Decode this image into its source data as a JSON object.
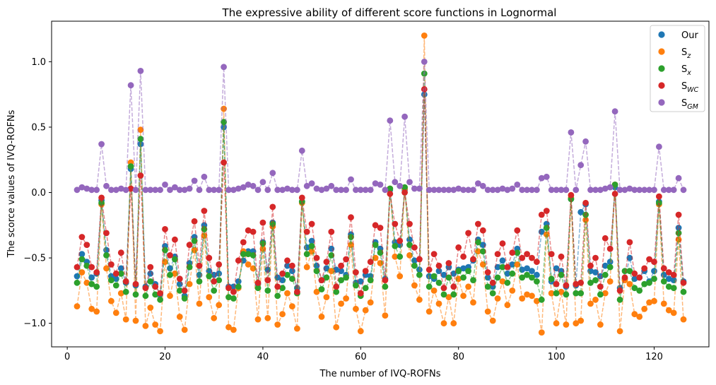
{
  "chart_data": {
    "type": "scatter",
    "title": "The expressive ability of different score functions in Lognormal",
    "xlabel": "The number of IVQ-ROFNs",
    "ylabel": "The scorce values  of IVQ-ROFNs",
    "xlim": [
      -3.2,
      131.2
    ],
    "ylim": [
      -1.18,
      1.31
    ],
    "xticks": [
      0,
      20,
      40,
      60,
      80,
      100,
      120
    ],
    "xtick_labels": [
      "0",
      "20",
      "40",
      "60",
      "80",
      "100",
      "120"
    ],
    "yticks": [
      -1.0,
      -0.5,
      0.0,
      0.5,
      1.0
    ],
    "ytick_labels": [
      "−1.0",
      "−0.5",
      "0.0",
      "0.5",
      "1.0"
    ],
    "grid": false,
    "legend_position": "top-right",
    "x": [
      2,
      3,
      4,
      5,
      6,
      7,
      8,
      9,
      10,
      11,
      12,
      13,
      14,
      15,
      16,
      17,
      18,
      19,
      20,
      21,
      22,
      23,
      24,
      25,
      26,
      27,
      28,
      29,
      30,
      31,
      32,
      33,
      34,
      35,
      36,
      37,
      38,
      39,
      40,
      41,
      42,
      43,
      44,
      45,
      46,
      47,
      48,
      49,
      50,
      51,
      52,
      53,
      54,
      55,
      56,
      57,
      58,
      59,
      60,
      61,
      62,
      63,
      64,
      65,
      66,
      67,
      68,
      69,
      70,
      71,
      72,
      73,
      74,
      75,
      76,
      77,
      78,
      79,
      80,
      81,
      82,
      83,
      84,
      85,
      86,
      87,
      88,
      89,
      90,
      91,
      92,
      93,
      94,
      95,
      96,
      97,
      98,
      99,
      100,
      101,
      102,
      103,
      104,
      105,
      106,
      107,
      108,
      109,
      110,
      111,
      112,
      113,
      114,
      115,
      116,
      117,
      118,
      119,
      120,
      121,
      122,
      123,
      124,
      125,
      126
    ],
    "series": [
      {
        "name": "Our",
        "label_main": "Our",
        "label_sub": "",
        "color": "#1f77b4",
        "values": [
          -0.64,
          -0.47,
          -0.53,
          -0.65,
          -0.62,
          -0.06,
          -0.44,
          -0.64,
          -0.66,
          -0.58,
          -0.69,
          0.18,
          -0.71,
          0.37,
          -0.72,
          -0.62,
          -0.7,
          -0.78,
          -0.41,
          -0.58,
          -0.49,
          -0.7,
          -0.79,
          -0.54,
          -0.34,
          -0.63,
          -0.25,
          -0.6,
          -0.63,
          -0.62,
          0.5,
          -0.72,
          -0.72,
          -0.68,
          -0.52,
          -0.45,
          -0.45,
          -0.7,
          -0.38,
          -0.59,
          -0.23,
          -0.65,
          -0.67,
          -0.56,
          -0.6,
          -0.73,
          -0.07,
          -0.42,
          -0.37,
          -0.56,
          -0.67,
          -0.58,
          -0.43,
          -0.59,
          -0.6,
          -0.63,
          -0.32,
          -0.69,
          -0.68,
          -0.63,
          -0.64,
          -0.38,
          -0.43,
          -0.66,
          0.02,
          -0.38,
          -0.4,
          0.02,
          -0.36,
          -0.52,
          -0.59,
          0.75,
          -0.64,
          -0.66,
          -0.6,
          -0.63,
          -0.57,
          -0.62,
          -0.59,
          -0.58,
          -0.57,
          -0.52,
          -0.36,
          -0.4,
          -0.65,
          -0.72,
          -0.57,
          -0.52,
          -0.62,
          -0.55,
          -0.43,
          -0.59,
          -0.58,
          -0.6,
          -0.63,
          -0.3,
          -0.24,
          -0.68,
          -0.58,
          -0.6,
          -0.72,
          -0.05,
          -0.71,
          -0.15,
          -0.09,
          -0.6,
          -0.61,
          -0.64,
          -0.56,
          -0.53,
          0.04,
          -0.73,
          -0.66,
          -0.5,
          -0.66,
          -0.65,
          -0.6,
          -0.68,
          -0.6,
          -0.07,
          -0.63,
          -0.66,
          -0.67,
          -0.27,
          -0.68
        ]
      },
      {
        "name": "S_z",
        "label_main": "S",
        "label_sub": "z",
        "color": "#ff7f0e",
        "values": [
          -0.87,
          -0.61,
          -0.69,
          -0.89,
          -0.91,
          -0.09,
          -0.58,
          -0.83,
          -0.92,
          -0.77,
          -0.97,
          0.23,
          -0.98,
          0.48,
          -1.02,
          -0.88,
          -1.01,
          -1.06,
          -0.53,
          -0.79,
          -0.62,
          -0.95,
          -1.05,
          -0.7,
          -0.44,
          -0.85,
          -0.33,
          -0.8,
          -0.96,
          -0.86,
          0.64,
          -1.03,
          -1.05,
          -0.73,
          -0.45,
          -0.55,
          -0.58,
          -0.97,
          -0.43,
          -0.96,
          -0.26,
          -1.01,
          -0.93,
          -0.77,
          -0.87,
          -1.04,
          -0.08,
          -0.57,
          -0.45,
          -0.76,
          -0.95,
          -0.8,
          -0.6,
          -1.03,
          -0.85,
          -0.81,
          -0.4,
          -0.89,
          -1.06,
          -0.9,
          -0.84,
          -0.5,
          -0.54,
          -0.94,
          0.03,
          -0.49,
          -0.64,
          0.03,
          -0.48,
          -0.71,
          -0.82,
          1.2,
          -0.91,
          -0.75,
          -0.85,
          -1.0,
          -0.8,
          -1.0,
          -0.66,
          -0.79,
          -0.72,
          -0.84,
          -0.45,
          -0.55,
          -0.91,
          -0.98,
          -0.81,
          -0.68,
          -0.86,
          -0.75,
          -0.55,
          -0.81,
          -0.78,
          -0.79,
          -0.83,
          -1.07,
          -0.32,
          -0.77,
          -1.0,
          -0.76,
          -1.01,
          -0.04,
          -1.0,
          -0.98,
          -0.21,
          -0.85,
          -0.82,
          -1.01,
          -0.77,
          -0.68,
          0.06,
          -1.06,
          -0.67,
          -0.7,
          -0.93,
          -0.95,
          -0.89,
          -0.84,
          -0.83,
          -0.09,
          -0.85,
          -0.9,
          -0.92,
          -0.36,
          -0.97
        ]
      },
      {
        "name": "S_x",
        "label_main": "S",
        "label_sub": "x",
        "color": "#2ca02c",
        "values": [
          -0.69,
          -0.51,
          -0.56,
          -0.7,
          -0.72,
          -0.08,
          -0.48,
          -0.67,
          -0.71,
          -0.62,
          -0.76,
          0.2,
          -0.78,
          0.41,
          -0.79,
          -0.68,
          -0.78,
          -0.82,
          -0.44,
          -0.63,
          -0.51,
          -0.75,
          -0.81,
          -0.57,
          -0.37,
          -0.68,
          -0.28,
          -0.64,
          -0.75,
          -0.67,
          0.54,
          -0.8,
          -0.81,
          -0.72,
          -0.47,
          -0.47,
          -0.48,
          -0.73,
          -0.39,
          -0.75,
          -0.24,
          -0.79,
          -0.73,
          -0.63,
          -0.66,
          -0.77,
          -0.07,
          -0.47,
          -0.41,
          -0.6,
          -0.74,
          -0.65,
          -0.48,
          -0.76,
          -0.67,
          -0.65,
          -0.34,
          -0.71,
          -0.79,
          -0.73,
          -0.67,
          -0.4,
          -0.46,
          -0.72,
          0.03,
          -0.41,
          -0.49,
          0.04,
          -0.4,
          -0.56,
          -0.63,
          0.91,
          -0.72,
          -0.64,
          -0.69,
          -0.78,
          -0.65,
          -0.78,
          -0.6,
          -0.65,
          -0.6,
          -0.67,
          -0.38,
          -0.45,
          -0.72,
          -0.77,
          -0.65,
          -0.57,
          -0.69,
          -0.62,
          -0.46,
          -0.65,
          -0.63,
          -0.65,
          -0.68,
          -0.82,
          -0.27,
          -0.66,
          -0.77,
          -0.63,
          -0.78,
          -0.05,
          -0.77,
          -0.77,
          -0.17,
          -0.69,
          -0.67,
          -0.78,
          -0.63,
          -0.57,
          0.06,
          -0.82,
          -0.6,
          -0.6,
          -0.73,
          -0.75,
          -0.7,
          -0.69,
          -0.66,
          -0.08,
          -0.68,
          -0.72,
          -0.73,
          -0.31,
          -0.76
        ]
      },
      {
        "name": "S_WC",
        "label_main": "S",
        "label_sub": "WC",
        "color": "#d62728",
        "values": [
          -0.57,
          -0.34,
          -0.4,
          -0.57,
          -0.61,
          -0.04,
          -0.31,
          -0.55,
          -0.62,
          -0.46,
          -0.68,
          0.03,
          -0.7,
          0.13,
          -0.73,
          -0.57,
          -0.72,
          -0.77,
          -0.28,
          -0.48,
          -0.36,
          -0.66,
          -0.75,
          -0.4,
          -0.22,
          -0.56,
          -0.14,
          -0.5,
          -0.68,
          -0.55,
          0.23,
          -0.73,
          -0.76,
          -0.52,
          -0.38,
          -0.29,
          -0.3,
          -0.69,
          -0.23,
          -0.67,
          -0.11,
          -0.72,
          -0.62,
          -0.52,
          -0.56,
          -0.76,
          -0.04,
          -0.3,
          -0.24,
          -0.5,
          -0.67,
          -0.53,
          -0.3,
          -0.72,
          -0.56,
          -0.51,
          -0.19,
          -0.61,
          -0.77,
          -0.6,
          -0.53,
          -0.25,
          -0.27,
          -0.67,
          -0.01,
          -0.24,
          -0.37,
          0.0,
          -0.24,
          -0.42,
          -0.51,
          0.79,
          -0.59,
          -0.47,
          -0.56,
          -0.73,
          -0.54,
          -0.72,
          -0.42,
          -0.49,
          -0.31,
          -0.51,
          -0.24,
          -0.29,
          -0.61,
          -0.69,
          -0.47,
          -0.39,
          -0.57,
          -0.46,
          -0.29,
          -0.5,
          -0.47,
          -0.5,
          -0.53,
          -0.17,
          -0.14,
          -0.47,
          -0.7,
          -0.49,
          -0.71,
          -0.02,
          -0.7,
          -0.69,
          -0.08,
          -0.56,
          -0.5,
          -0.72,
          -0.35,
          -0.43,
          -0.01,
          -0.75,
          -0.65,
          -0.38,
          -0.62,
          -0.65,
          -0.58,
          -0.51,
          -0.53,
          -0.03,
          -0.58,
          -0.61,
          -0.63,
          -0.17,
          -0.69
        ]
      },
      {
        "name": "S_GM",
        "label_main": "S",
        "label_sub": "GM",
        "color": "#9467bd",
        "values": [
          0.02,
          0.04,
          0.03,
          0.02,
          0.02,
          0.37,
          0.05,
          0.02,
          0.02,
          0.03,
          0.02,
          0.82,
          0.02,
          0.93,
          0.02,
          0.02,
          0.02,
          0.02,
          0.06,
          0.02,
          0.04,
          0.02,
          0.02,
          0.03,
          0.09,
          0.02,
          0.12,
          0.02,
          0.02,
          0.02,
          0.96,
          0.02,
          0.02,
          0.03,
          0.04,
          0.06,
          0.05,
          0.02,
          0.08,
          0.02,
          0.15,
          0.02,
          0.02,
          0.03,
          0.02,
          0.02,
          0.32,
          0.05,
          0.07,
          0.03,
          0.02,
          0.03,
          0.05,
          0.02,
          0.02,
          0.02,
          0.1,
          0.02,
          0.02,
          0.02,
          0.02,
          0.07,
          0.06,
          0.02,
          0.55,
          0.08,
          0.05,
          0.58,
          0.08,
          0.03,
          0.03,
          1.0,
          0.02,
          0.02,
          0.02,
          0.02,
          0.02,
          0.02,
          0.03,
          0.02,
          0.02,
          0.02,
          0.07,
          0.05,
          0.02,
          0.02,
          0.02,
          0.03,
          0.02,
          0.03,
          0.06,
          0.02,
          0.02,
          0.02,
          0.02,
          0.11,
          0.12,
          0.02,
          0.02,
          0.02,
          0.02,
          0.46,
          0.02,
          0.21,
          0.39,
          0.02,
          0.02,
          0.02,
          0.03,
          0.04,
          0.62,
          0.02,
          0.02,
          0.03,
          0.02,
          0.02,
          0.02,
          0.02,
          0.02,
          0.35,
          0.02,
          0.02,
          0.02,
          0.11,
          0.02
        ]
      }
    ]
  }
}
